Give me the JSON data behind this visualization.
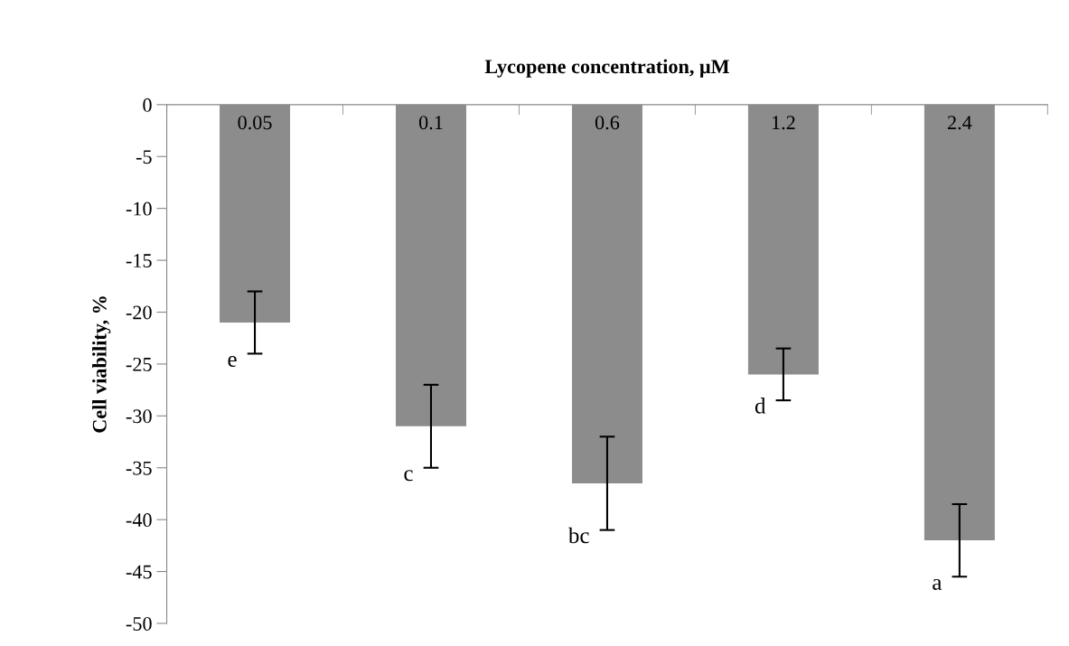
{
  "chart_data": {
    "type": "bar",
    "xlabel": "Lycopene concentration, μM",
    "ylabel": "Cell viability, %",
    "categories": [
      "0.05",
      "0.1",
      "0.6",
      "1.2",
      "2.4"
    ],
    "values": [
      -21,
      -31,
      -36.5,
      -26,
      -42
    ],
    "errors": [
      3,
      4,
      4.5,
      2.5,
      3.5
    ],
    "color": "#8c8c8c",
    "ylim": [
      -50,
      0
    ],
    "yticks": [
      -50,
      -45,
      -40,
      -35,
      -30,
      -25,
      -20,
      -15,
      -10,
      -5,
      0
    ],
    "grid": false,
    "annotations": [
      "e",
      "c",
      "bc",
      "d",
      "a"
    ]
  }
}
